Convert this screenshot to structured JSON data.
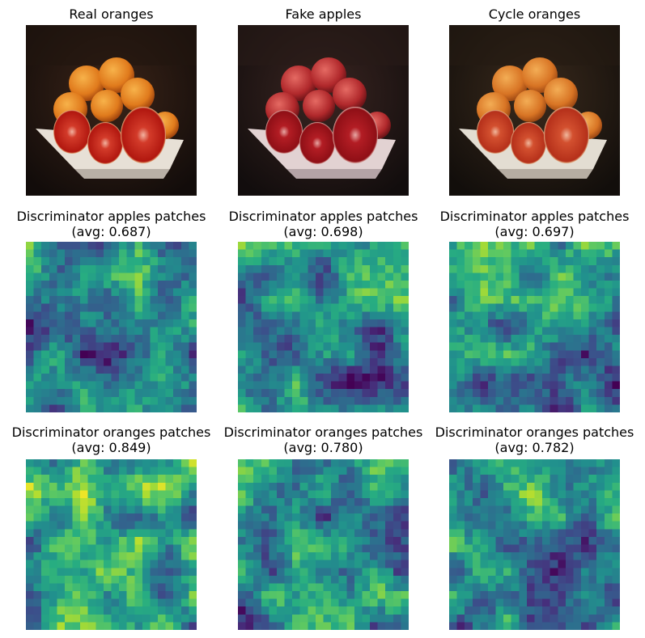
{
  "figure": {
    "rows": [
      {
        "panels": [
          {
            "title": "Real oranges",
            "kind": "photo",
            "variant": "real"
          },
          {
            "title": "Fake apples",
            "kind": "photo",
            "variant": "fake"
          },
          {
            "title": "Cycle oranges",
            "kind": "photo",
            "variant": "cycle"
          }
        ]
      },
      {
        "panels": [
          {
            "title": "Discriminator apples patches",
            "avg_label": "(avg: 0.687)",
            "avg": 0.687,
            "kind": "heatmap"
          },
          {
            "title": "Discriminator apples patches",
            "avg_label": "(avg: 0.698)",
            "avg": 0.698,
            "kind": "heatmap"
          },
          {
            "title": "Discriminator apples patches",
            "avg_label": "(avg: 0.697)",
            "avg": 0.697,
            "kind": "heatmap"
          }
        ]
      },
      {
        "panels": [
          {
            "title": "Discriminator oranges patches",
            "avg_label": "(avg: 0.849)",
            "avg": 0.849,
            "kind": "heatmap"
          },
          {
            "title": "Discriminator oranges patches",
            "avg_label": "(avg: 0.780)",
            "avg": 0.78,
            "kind": "heatmap"
          },
          {
            "title": "Discriminator oranges patches",
            "avg_label": "(avg: 0.782)",
            "avg": 0.782,
            "kind": "heatmap"
          }
        ]
      }
    ],
    "colormap": "viridis"
  }
}
